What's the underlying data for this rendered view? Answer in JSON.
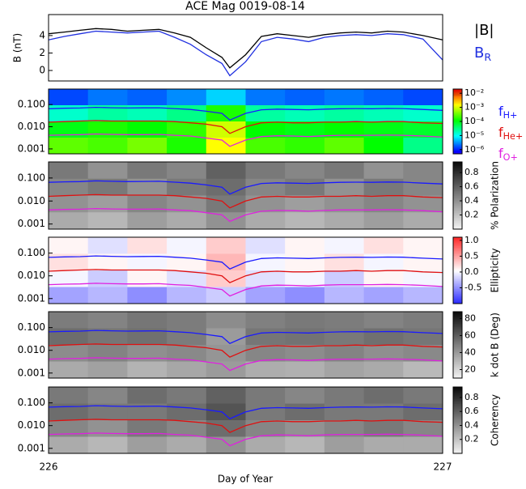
{
  "chart_data": {
    "title": "ACE Mag 0019-08-14",
    "xlabel": "Day of Year",
    "xlim": [
      226,
      227
    ],
    "xticks": [
      226,
      227
    ],
    "panels": [
      {
        "type": "line",
        "ylabel": "B (nT)",
        "ylim": [
          -1.2,
          6.4
        ],
        "yticks": [
          0,
          2,
          4
        ],
        "x": [
          226.0,
          226.04,
          226.08,
          226.12,
          226.16,
          226.2,
          226.24,
          226.28,
          226.32,
          226.36,
          226.4,
          226.44,
          226.46,
          226.5,
          226.54,
          226.58,
          226.62,
          226.66,
          226.7,
          226.74,
          226.78,
          226.82,
          226.86,
          226.9,
          226.95,
          227.0
        ],
        "series": [
          {
            "name": {
              "base": "|B|"
            },
            "color": "#000000",
            "values": [
              4.2,
              4.4,
              4.6,
              4.8,
              4.7,
              4.5,
              4.6,
              4.7,
              4.3,
              3.8,
              2.6,
              1.5,
              0.3,
              1.8,
              3.9,
              4.2,
              4.0,
              3.8,
              4.1,
              4.3,
              4.4,
              4.3,
              4.5,
              4.4,
              4.0,
              3.5
            ]
          },
          {
            "name": {
              "base": "B",
              "sub": "R"
            },
            "color": "#2030e0",
            "values": [
              3.5,
              3.9,
              4.2,
              4.5,
              4.4,
              4.3,
              4.4,
              4.5,
              3.8,
              3.0,
              1.8,
              0.8,
              -0.6,
              1.0,
              3.3,
              3.8,
              3.6,
              3.3,
              3.8,
              4.0,
              4.1,
              4.0,
              4.2,
              4.1,
              3.6,
              1.2
            ]
          }
        ]
      },
      {
        "type": "spectrogram",
        "colormap": "rainbow",
        "clim": [
          -6.3,
          -1.7
        ],
        "cticks": [
          {
            "value": -2,
            "label": "10⁻²"
          },
          {
            "value": -3,
            "label": "10⁻³"
          },
          {
            "value": -4,
            "label": "10⁻⁴"
          },
          {
            "value": -5,
            "label": "10⁻⁵"
          },
          {
            "value": -6,
            "label": "10⁻⁶"
          }
        ],
        "z": [
          [
            -5.8,
            -5.6,
            -5.7,
            -5.5,
            -5.2,
            -5.6,
            -5.7,
            -5.6,
            -5.7,
            -5.8
          ],
          [
            -4.8,
            -4.6,
            -4.7,
            -4.5,
            -3.8,
            -4.6,
            -4.7,
            -4.6,
            -4.7,
            -4.8
          ],
          [
            -4.0,
            -3.8,
            -3.9,
            -3.7,
            -3.0,
            -3.9,
            -4.0,
            -3.9,
            -4.0,
            -4.1
          ],
          [
            -3.5,
            -3.6,
            -3.4,
            -3.8,
            -2.8,
            -3.6,
            -3.7,
            -3.5,
            -3.9,
            -4.5
          ]
        ]
      },
      {
        "type": "spectrogram",
        "colormap": "gray",
        "clim": [
          0,
          0.95
        ],
        "colorbar_label": "% Polarization",
        "cticks": [
          0.2,
          0.4,
          0.6,
          0.8
        ],
        "z": [
          [
            0.5,
            0.4,
            0.5,
            0.45,
            0.6,
            0.5,
            0.45,
            0.5,
            0.4,
            0.45
          ],
          [
            0.45,
            0.5,
            0.4,
            0.5,
            0.55,
            0.45,
            0.5,
            0.4,
            0.5,
            0.45
          ],
          [
            0.4,
            0.35,
            0.45,
            0.4,
            0.5,
            0.4,
            0.35,
            0.4,
            0.45,
            0.4
          ],
          [
            0.3,
            0.25,
            0.35,
            0.3,
            0.4,
            0.3,
            0.25,
            0.3,
            0.35,
            0.3
          ]
        ]
      },
      {
        "type": "spectrogram",
        "colormap": "bwr",
        "clim": [
          -1,
          1.1
        ],
        "colorbar_label": "Ellipticity",
        "cticks": [
          -0.5,
          {
            "value": 0,
            "label": "0.0"
          },
          0.5,
          {
            "value": 1,
            "label": "1.0"
          }
        ],
        "z": [
          [
            0.1,
            -0.1,
            0.2,
            0.0,
            0.3,
            -0.1,
            0.1,
            0.0,
            0.2,
            0.1
          ],
          [
            0.2,
            0.1,
            0.0,
            0.1,
            0.4,
            0.0,
            0.1,
            0.2,
            0.0,
            0.1
          ],
          [
            0.0,
            -0.2,
            0.1,
            -0.1,
            0.3,
            -0.1,
            0.0,
            -0.2,
            0.1,
            0.0
          ],
          [
            -0.4,
            -0.3,
            -0.5,
            -0.3,
            -0.2,
            -0.4,
            -0.5,
            -0.3,
            -0.4,
            -0.3
          ]
        ]
      },
      {
        "type": "spectrogram",
        "colormap": "gray",
        "clim": [
          10,
          88
        ],
        "colorbar_label": "k dot B (Deg)",
        "cticks": [
          20,
          40,
          60,
          80
        ],
        "z": [
          [
            50,
            48,
            52,
            50,
            45,
            49,
            51,
            50,
            48,
            50
          ],
          [
            55,
            52,
            54,
            50,
            40,
            52,
            53,
            51,
            54,
            52
          ],
          [
            45,
            48,
            44,
            46,
            42,
            47,
            45,
            48,
            44,
            46
          ],
          [
            35,
            38,
            32,
            36,
            40,
            34,
            33,
            37,
            35,
            30
          ]
        ]
      },
      {
        "type": "spectrogram",
        "colormap": "gray",
        "clim": [
          0,
          0.95
        ],
        "colorbar_label": "Coherency",
        "cticks": [
          0.2,
          0.4,
          0.6,
          0.8
        ],
        "z": [
          [
            0.5,
            0.45,
            0.55,
            0.5,
            0.6,
            0.5,
            0.45,
            0.5,
            0.55,
            0.5
          ],
          [
            0.55,
            0.5,
            0.5,
            0.55,
            0.65,
            0.5,
            0.55,
            0.5,
            0.5,
            0.55
          ],
          [
            0.45,
            0.4,
            0.5,
            0.45,
            0.55,
            0.45,
            0.4,
            0.45,
            0.5,
            0.45
          ],
          [
            0.3,
            0.25,
            0.35,
            0.3,
            0.4,
            0.3,
            0.25,
            0.35,
            0.3,
            0.3
          ]
        ]
      }
    ],
    "freq_ylim": [
      0.0006,
      0.5
    ],
    "freq_yticks": [
      {
        "value": 0.1,
        "label": "0.100"
      },
      {
        "value": 0.01,
        "label": "0.010"
      },
      {
        "value": 0.001,
        "label": "0.001"
      }
    ],
    "gyro": {
      "x": [
        226.0,
        226.04,
        226.08,
        226.12,
        226.16,
        226.2,
        226.24,
        226.28,
        226.32,
        226.36,
        226.4,
        226.44,
        226.46,
        226.5,
        226.54,
        226.58,
        226.62,
        226.66,
        226.7,
        226.74,
        226.78,
        226.82,
        226.86,
        226.9,
        226.95,
        227.0
      ],
      "series": [
        {
          "name": {
            "base": "f",
            "sub": "H+"
          },
          "color": "#1a1aff",
          "values": [
            0.065,
            0.068,
            0.07,
            0.075,
            0.072,
            0.07,
            0.071,
            0.072,
            0.066,
            0.06,
            0.05,
            0.04,
            0.02,
            0.04,
            0.058,
            0.062,
            0.06,
            0.058,
            0.062,
            0.065,
            0.066,
            0.065,
            0.067,
            0.066,
            0.06,
            0.055
          ]
        },
        {
          "name": {
            "base": "f",
            "sub": "He+"
          },
          "color": "#e01010",
          "values": [
            0.016,
            0.017,
            0.018,
            0.019,
            0.018,
            0.018,
            0.018,
            0.018,
            0.017,
            0.015,
            0.013,
            0.01,
            0.005,
            0.01,
            0.015,
            0.016,
            0.015,
            0.015,
            0.016,
            0.016,
            0.017,
            0.016,
            0.017,
            0.017,
            0.015,
            0.014
          ]
        },
        {
          "name": {
            "base": "f",
            "sub": "O+"
          },
          "color": "#e020e0",
          "values": [
            0.0041,
            0.0043,
            0.0044,
            0.0047,
            0.0045,
            0.0044,
            0.0044,
            0.0045,
            0.0041,
            0.0038,
            0.0031,
            0.0025,
            0.0013,
            0.0025,
            0.0036,
            0.0039,
            0.0038,
            0.0036,
            0.0039,
            0.0041,
            0.0041,
            0.0041,
            0.0042,
            0.0041,
            0.0038,
            0.0034
          ]
        }
      ]
    }
  }
}
